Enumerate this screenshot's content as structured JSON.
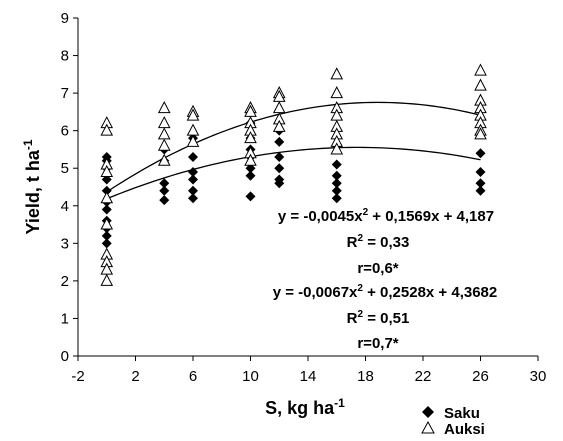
{
  "chart_data": {
    "type": "scatter",
    "xlabel": "S, kg ha",
    "xlabel_sup": "-1",
    "ylabel": "Yield, t ha",
    "ylabel_sup": "-1",
    "xlim": [
      -2,
      30
    ],
    "ylim": [
      0,
      9
    ],
    "x_ticks": [
      -2,
      2,
      6,
      10,
      14,
      18,
      22,
      26,
      30
    ],
    "y_ticks": [
      0,
      1,
      2,
      3,
      4,
      5,
      6,
      7,
      8,
      9
    ],
    "grid": false,
    "legend_position": "bottom-right",
    "series": [
      {
        "name": "Saku",
        "marker": "diamond",
        "color": "#000000",
        "points": [
          [
            0,
            5.3
          ],
          [
            0,
            5.2
          ],
          [
            0,
            5.0
          ],
          [
            0,
            4.7
          ],
          [
            0,
            4.4
          ],
          [
            0,
            4.1
          ],
          [
            0,
            3.9
          ],
          [
            0,
            3.6
          ],
          [
            0,
            3.4
          ],
          [
            0,
            3.2
          ],
          [
            0,
            3.0
          ],
          [
            4,
            5.5
          ],
          [
            4,
            5.2
          ],
          [
            4,
            4.6
          ],
          [
            4,
            4.4
          ],
          [
            4,
            4.15
          ],
          [
            6,
            5.8
          ],
          [
            6,
            5.3
          ],
          [
            6,
            4.9
          ],
          [
            6,
            4.7
          ],
          [
            6,
            4.4
          ],
          [
            6,
            4.2
          ],
          [
            10,
            6.2
          ],
          [
            10,
            5.8
          ],
          [
            10,
            5.5
          ],
          [
            10,
            5.3
          ],
          [
            10,
            5.0
          ],
          [
            10,
            4.8
          ],
          [
            10,
            4.25
          ],
          [
            12,
            6.0
          ],
          [
            12,
            5.7
          ],
          [
            12,
            5.3
          ],
          [
            12,
            5.0
          ],
          [
            12,
            4.7
          ],
          [
            12,
            4.6
          ],
          [
            16,
            5.6
          ],
          [
            16,
            5.1
          ],
          [
            16,
            4.8
          ],
          [
            16,
            4.6
          ],
          [
            16,
            4.4
          ],
          [
            16,
            4.2
          ],
          [
            26,
            5.9
          ],
          [
            26,
            5.4
          ],
          [
            26,
            4.9
          ],
          [
            26,
            4.6
          ],
          [
            26,
            4.4
          ]
        ]
      },
      {
        "name": "Auksi",
        "marker": "triangle-open",
        "color": "#000000",
        "points": [
          [
            0,
            6.2
          ],
          [
            0,
            6.0
          ],
          [
            0,
            5.1
          ],
          [
            0,
            4.9
          ],
          [
            0,
            4.2
          ],
          [
            0,
            3.5
          ],
          [
            0,
            2.7
          ],
          [
            0,
            2.5
          ],
          [
            0,
            2.3
          ],
          [
            0,
            2.0
          ],
          [
            4,
            6.6
          ],
          [
            4,
            6.2
          ],
          [
            4,
            5.9
          ],
          [
            4,
            5.6
          ],
          [
            4,
            5.2
          ],
          [
            6,
            6.5
          ],
          [
            6,
            6.4
          ],
          [
            6,
            6.0
          ],
          [
            6,
            5.7
          ],
          [
            10,
            6.6
          ],
          [
            10,
            6.5
          ],
          [
            10,
            6.2
          ],
          [
            10,
            6.0
          ],
          [
            10,
            5.8
          ],
          [
            10,
            5.4
          ],
          [
            10,
            5.2
          ],
          [
            12,
            7.0
          ],
          [
            12,
            6.9
          ],
          [
            12,
            6.6
          ],
          [
            12,
            6.3
          ],
          [
            12,
            6.1
          ],
          [
            16,
            7.5
          ],
          [
            16,
            7.0
          ],
          [
            16,
            6.6
          ],
          [
            16,
            6.4
          ],
          [
            16,
            6.1
          ],
          [
            16,
            5.9
          ],
          [
            16,
            5.7
          ],
          [
            16,
            5.5
          ],
          [
            26,
            7.6
          ],
          [
            26,
            7.2
          ],
          [
            26,
            6.8
          ],
          [
            26,
            6.6
          ],
          [
            26,
            6.4
          ],
          [
            26,
            6.2
          ],
          [
            26,
            6.0
          ],
          [
            26,
            5.9
          ]
        ]
      }
    ],
    "fits": [
      {
        "coeffs": [
          -0.0067,
          0.2528,
          4.3682
        ],
        "x_range": [
          0,
          26
        ],
        "color": "#000000"
      },
      {
        "coeffs": [
          -0.0045,
          0.1569,
          4.187
        ],
        "x_range": [
          0,
          26
        ],
        "color": "#000000"
      }
    ],
    "annotations": {
      "eq1": {
        "pre": "y = -0,0045x",
        "sup": "2",
        "post": " + 0,1569x + 4,187"
      },
      "r2_1": {
        "pre": "R",
        "sup": "2",
        "post": " = 0,33"
      },
      "r1": "r=0,6*",
      "eq2": {
        "pre": "y = -0,0067x",
        "sup": "2",
        "post": " + 0,2528x + 4,3682"
      },
      "r2_2": {
        "pre": "R",
        "sup": "2",
        "post": " = 0,51"
      },
      "r2": "r=0,7*"
    }
  }
}
